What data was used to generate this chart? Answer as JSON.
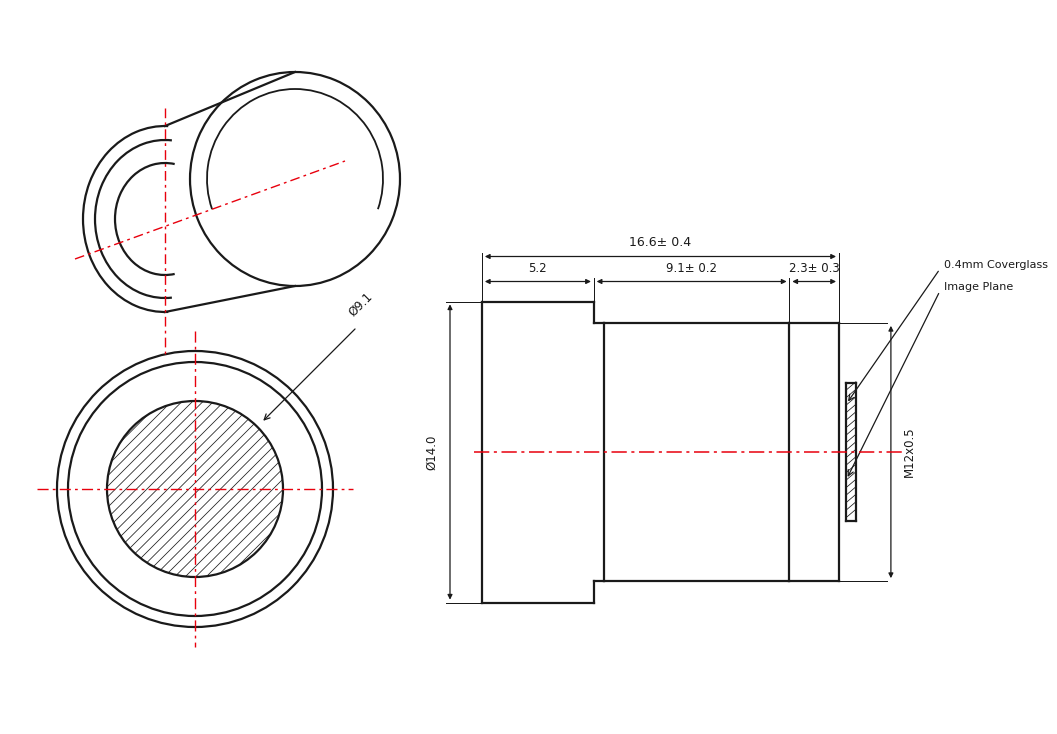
{
  "bg_color": "#ffffff",
  "line_color": "#1a1a1a",
  "red_color": "#e8000d",
  "dim_total_length": "16.6± 0.4",
  "dim_front_section": "5.2",
  "dim_middle_section": "9.1± 0.2",
  "dim_back_section": "2.3± 0.3",
  "dim_diameter": "Ø14.0",
  "dim_inner_diameter": "Ø9.1",
  "dim_thread": "M12x0.5",
  "dim_coverglass": "0.4mm Coverglass",
  "dim_image_plane": "Image Plane"
}
